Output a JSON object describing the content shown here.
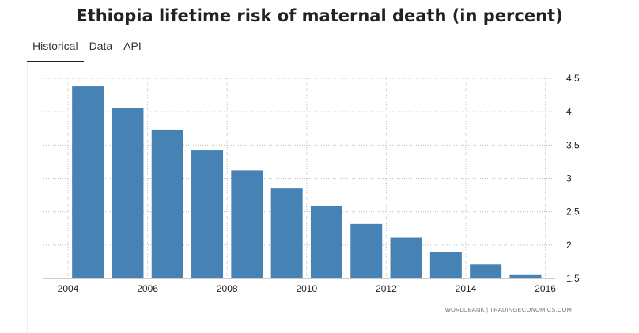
{
  "page": {
    "title": "Ethiopia lifetime risk of maternal death (in percent)"
  },
  "tabs": [
    {
      "label": "Historical",
      "active": true
    },
    {
      "label": "Data",
      "active": false
    },
    {
      "label": "API",
      "active": false
    }
  ],
  "chart_data": {
    "type": "bar",
    "title": "Ethiopia lifetime risk of maternal death (in percent)",
    "xlabel": "",
    "ylabel": "",
    "categories": [
      "2004",
      "2005",
      "2006",
      "2007",
      "2008",
      "2009",
      "2010",
      "2011",
      "2012",
      "2013",
      "2014",
      "2015"
    ],
    "values": [
      4.38,
      4.05,
      3.73,
      3.42,
      3.12,
      2.85,
      2.58,
      2.32,
      2.11,
      1.9,
      1.71,
      1.55
    ],
    "ylim": [
      1.5,
      4.5
    ],
    "y_ticks": [
      "1.5",
      "2",
      "2.5",
      "3",
      "3.5",
      "4",
      "4.5"
    ],
    "x_ticks": [
      "2004",
      "2006",
      "2008",
      "2010",
      "2012",
      "2014",
      "2016"
    ],
    "y_axis_side": "right",
    "grid": true,
    "bar_color": "#4682b4",
    "source": "WORLDBANK | TRADINGECONOMICS.COM"
  }
}
